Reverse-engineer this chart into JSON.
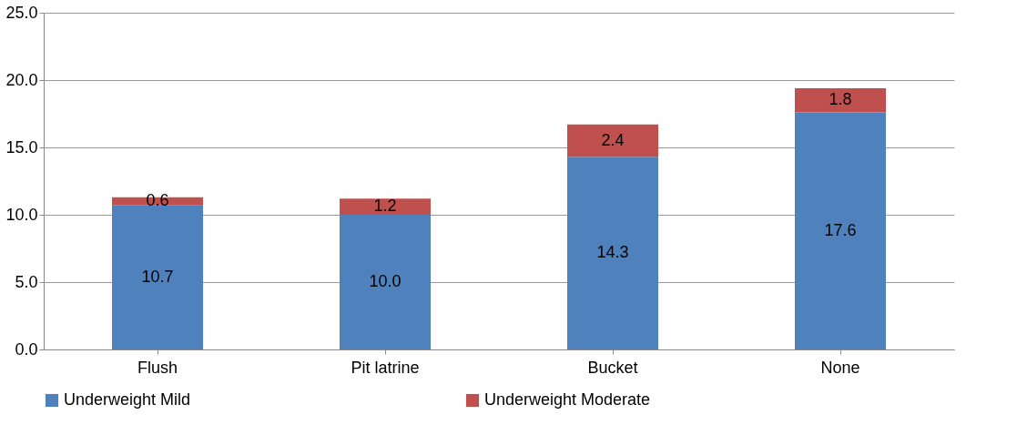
{
  "chart_data": {
    "type": "bar",
    "stacked": true,
    "categories": [
      "Flush",
      "Pit latrine",
      "Bucket",
      "None"
    ],
    "series": [
      {
        "name": "Underweight Mild",
        "color": "#4f81bd",
        "values": [
          10.7,
          10.0,
          14.3,
          17.6
        ],
        "value_labels": [
          "10.7",
          "10.0",
          "14.3",
          "17.6"
        ]
      },
      {
        "name": "Underweight Moderate",
        "color": "#c0504d",
        "values": [
          0.6,
          1.2,
          2.4,
          1.8
        ],
        "value_labels": [
          "0.6",
          "1.2",
          "2.4",
          "1.8"
        ]
      }
    ],
    "ylim": [
      0,
      25
    ],
    "yticks": [
      {
        "value": 0,
        "label": "0.0"
      },
      {
        "value": 5,
        "label": "5.0"
      },
      {
        "value": 10,
        "label": "10.0"
      },
      {
        "value": 15,
        "label": "15.0"
      },
      {
        "value": 20,
        "label": "20.0"
      },
      {
        "value": 25,
        "label": "25.0"
      }
    ],
    "grid": "y",
    "legend": "bottom"
  }
}
